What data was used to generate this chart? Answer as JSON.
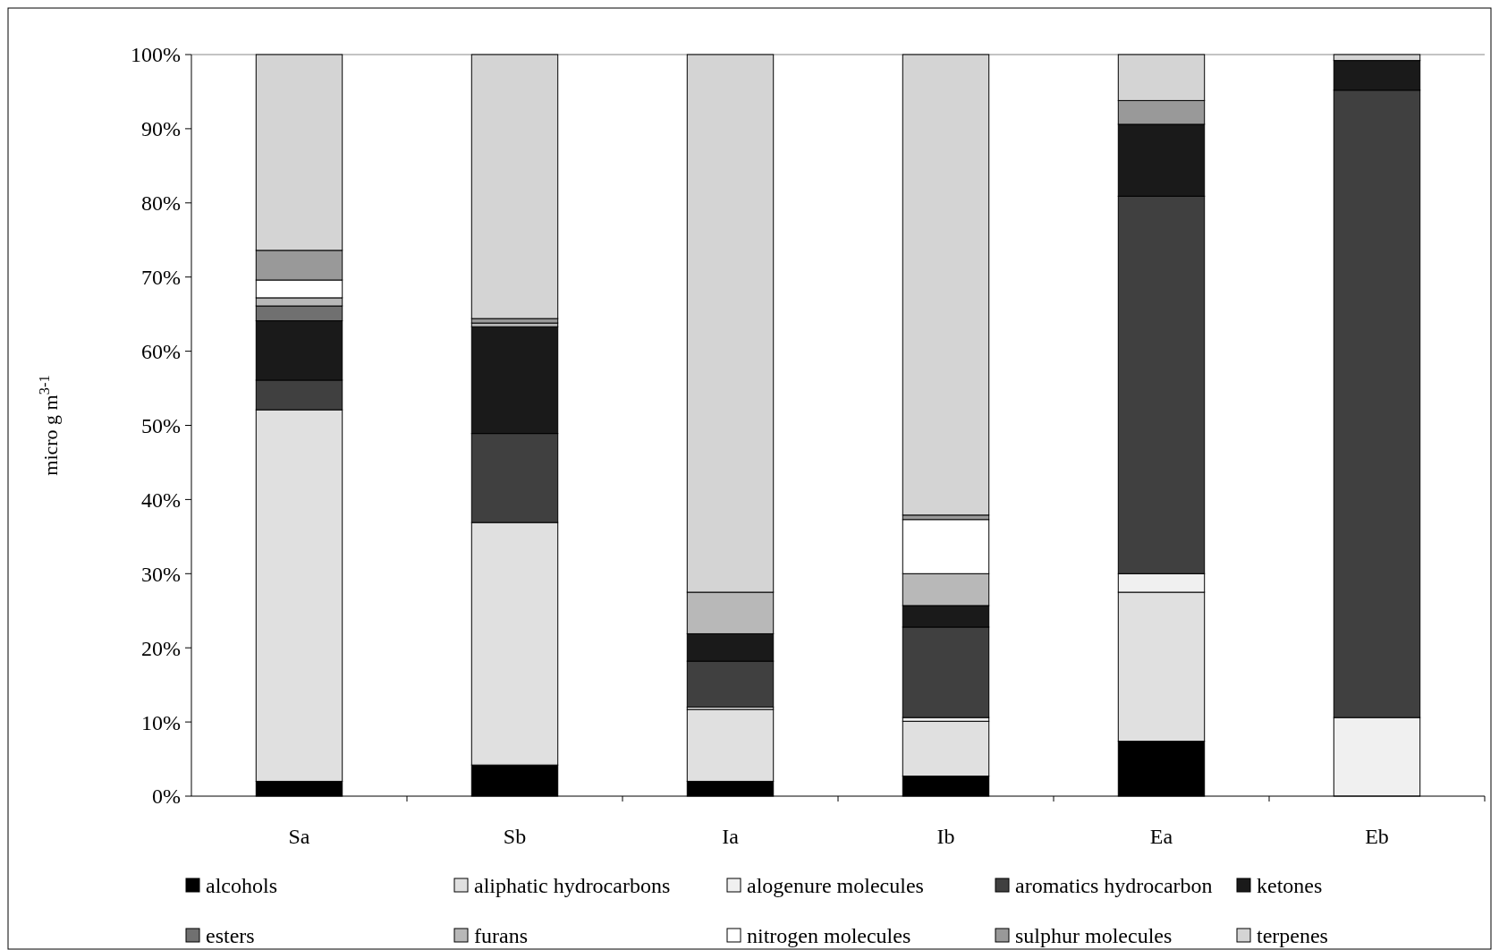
{
  "chart_data": {
    "type": "bar",
    "stacked": true,
    "ylabel": "micro g m$^{3-1}$",
    "categories": [
      "Sa",
      "Sb",
      "Ia",
      "Ib",
      "Ea",
      "Eb"
    ],
    "ylim": [
      0,
      100
    ],
    "yticks": [
      {
        "value": 0,
        "label": "0%"
      },
      {
        "value": 10,
        "label": "10%"
      },
      {
        "value": 20,
        "label": "20%"
      },
      {
        "value": 30,
        "label": "30%"
      },
      {
        "value": 40,
        "label": "40%"
      },
      {
        "value": 50,
        "label": "50%"
      },
      {
        "value": 60,
        "label": "60%"
      },
      {
        "value": 70,
        "label": "70%"
      },
      {
        "value": 80,
        "label": "80%"
      },
      {
        "value": 90,
        "label": "90%"
      },
      {
        "value": 100,
        "label": "100%"
      }
    ],
    "legend": "bottom",
    "series": [
      {
        "name": "alcohols",
        "color": "#000000",
        "values": [
          2.0,
          4.2,
          2.0,
          2.7,
          7.4,
          0
        ]
      },
      {
        "name": "aliphatic hydrocarbons",
        "color": "#e0e0e0",
        "values": [
          50.1,
          32.7,
          9.7,
          7.4,
          20.1,
          0
        ]
      },
      {
        "name": "alogenure molecules",
        "color": "#f0f0f0",
        "values": [
          0,
          0,
          0.3,
          0.5,
          2.5,
          10.6
        ]
      },
      {
        "name": "aromatics hydrocarbon",
        "color": "#404040",
        "values": [
          4.0,
          12.0,
          6.2,
          12.2,
          50.9,
          84.6
        ]
      },
      {
        "name": "ketones",
        "color": "#1a1a1a",
        "values": [
          8.0,
          14.4,
          3.7,
          2.9,
          9.7,
          4.0
        ]
      },
      {
        "name": "esters",
        "color": "#707070",
        "values": [
          2.0,
          0,
          0,
          0,
          0,
          0
        ]
      },
      {
        "name": "furans",
        "color": "#b8b8b8",
        "values": [
          1.1,
          0.5,
          5.6,
          4.3,
          0,
          0
        ]
      },
      {
        "name": "nitrogen molecules",
        "color": "#ffffff",
        "values": [
          2.4,
          0,
          0,
          7.3,
          0,
          0
        ]
      },
      {
        "name": "sulphur molecules",
        "color": "#999999",
        "values": [
          4.0,
          0.6,
          0,
          0.6,
          3.2,
          0
        ]
      },
      {
        "name": "terpenes",
        "color": "#d4d4d4",
        "values": [
          26.4,
          35.6,
          72.5,
          62.1,
          6.2,
          0.8
        ]
      }
    ]
  }
}
